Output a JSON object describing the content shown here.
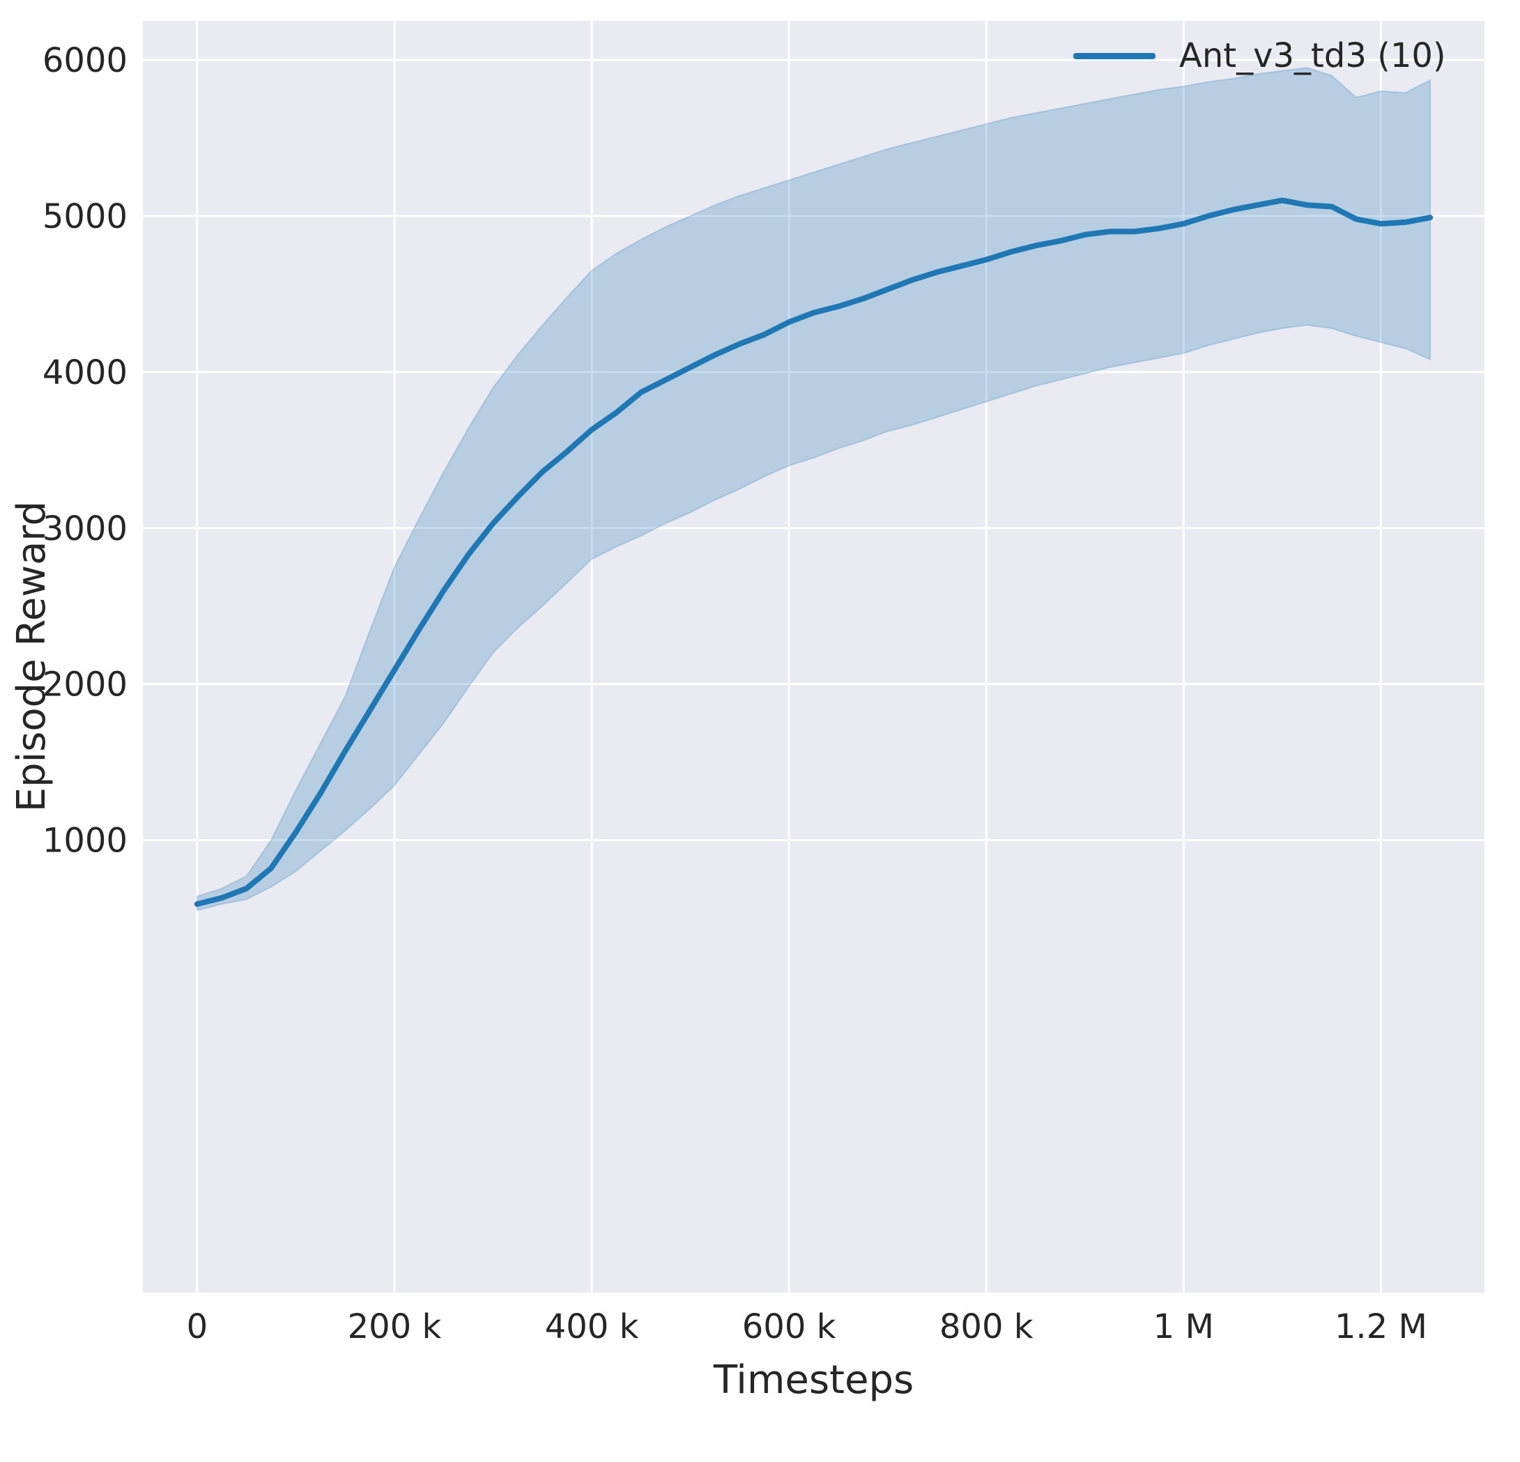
{
  "chart_data": {
    "type": "line",
    "title": "",
    "xlabel": "Timesteps",
    "ylabel": "Episode Reward",
    "background": "#eaeaf2",
    "grid_color": "#ffffff",
    "text_color": "#262626",
    "grid": true,
    "legend_position": "upper right",
    "xlim": [
      -55000,
      1305000
    ],
    "ylim": [
      -1900,
      6250
    ],
    "x_ticks": [
      {
        "value": 0,
        "label": "0"
      },
      {
        "value": 200000,
        "label": "200 k"
      },
      {
        "value": 400000,
        "label": "400 k"
      },
      {
        "value": 600000,
        "label": "600 k"
      },
      {
        "value": 800000,
        "label": "800 k"
      },
      {
        "value": 1000000,
        "label": "1 M"
      },
      {
        "value": 1200000,
        "label": "1.2 M"
      }
    ],
    "y_ticks": [
      {
        "value": 1000,
        "label": "1000"
      },
      {
        "value": 2000,
        "label": "2000"
      },
      {
        "value": 3000,
        "label": "3000"
      },
      {
        "value": 4000,
        "label": "4000"
      },
      {
        "value": 5000,
        "label": "5000"
      },
      {
        "value": 6000,
        "label": "6000"
      }
    ],
    "legend": [
      {
        "label": "Ant_v3_td3 (10)",
        "color": "#1f77b4"
      }
    ],
    "series": [
      {
        "name": "Ant_v3_td3 (10)",
        "color": "#1f77b4",
        "band_alpha": 0.25,
        "x": [
          0,
          25000,
          50000,
          75000,
          100000,
          125000,
          150000,
          175000,
          200000,
          225000,
          250000,
          275000,
          300000,
          325000,
          350000,
          375000,
          400000,
          425000,
          450000,
          475000,
          500000,
          525000,
          550000,
          575000,
          600000,
          625000,
          650000,
          675000,
          700000,
          725000,
          750000,
          775000,
          800000,
          825000,
          850000,
          875000,
          900000,
          925000,
          950000,
          975000,
          1000000,
          1025000,
          1050000,
          1075000,
          1100000,
          1125000,
          1150000,
          1175000,
          1200000,
          1225000,
          1250000
        ],
        "mean": [
          590,
          630,
          690,
          820,
          1050,
          1300,
          1570,
          1830,
          2090,
          2350,
          2600,
          2830,
          3030,
          3200,
          3360,
          3490,
          3630,
          3740,
          3870,
          3950,
          4030,
          4110,
          4180,
          4240,
          4320,
          4380,
          4420,
          4470,
          4530,
          4590,
          4640,
          4680,
          4720,
          4770,
          4810,
          4840,
          4880,
          4900,
          4900,
          4920,
          4950,
          5000,
          5040,
          5070,
          5100,
          5070,
          5060,
          4980,
          4950,
          4960,
          4990
        ],
        "lower": [
          550,
          590,
          620,
          700,
          800,
          930,
          1060,
          1200,
          1350,
          1550,
          1750,
          1980,
          2200,
          2360,
          2500,
          2650,
          2800,
          2880,
          2950,
          3030,
          3100,
          3180,
          3250,
          3330,
          3400,
          3450,
          3510,
          3560,
          3620,
          3660,
          3710,
          3760,
          3810,
          3860,
          3910,
          3950,
          3990,
          4030,
          4060,
          4090,
          4120,
          4170,
          4210,
          4250,
          4280,
          4300,
          4280,
          4230,
          4190,
          4150,
          4080
        ],
        "upper": [
          640,
          690,
          770,
          1000,
          1320,
          1620,
          1920,
          2340,
          2750,
          3060,
          3360,
          3640,
          3900,
          4110,
          4300,
          4480,
          4650,
          4760,
          4850,
          4930,
          5000,
          5070,
          5130,
          5180,
          5230,
          5280,
          5330,
          5380,
          5430,
          5470,
          5510,
          5550,
          5590,
          5630,
          5660,
          5690,
          5720,
          5750,
          5780,
          5810,
          5830,
          5860,
          5880,
          5910,
          5930,
          5950,
          5900,
          5760,
          5800,
          5790,
          5870
        ]
      }
    ]
  }
}
